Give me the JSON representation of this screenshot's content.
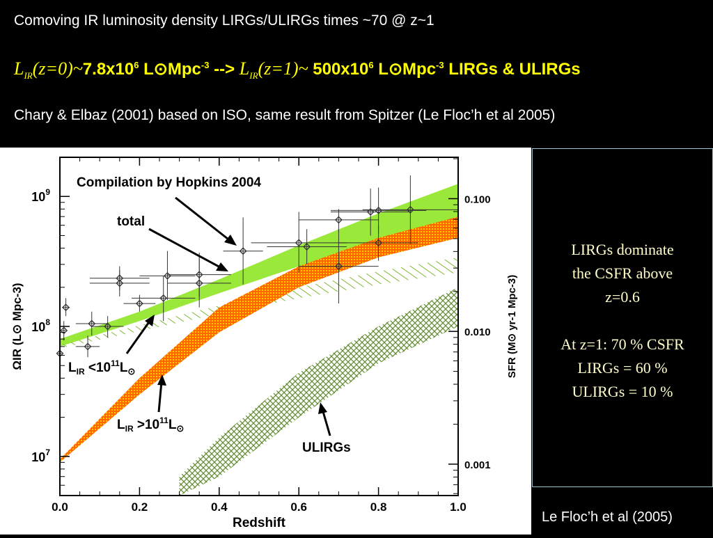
{
  "header": {
    "line1": "Comoving IR luminosity density LIRGs/ULIRGs times ~70 @ z~1",
    "line2": {
      "sym": "L",
      "sub": "IR",
      "z0": "(z=0)~",
      "val0": "7.8x10",
      "exp0": "6",
      "unit_l": "L",
      "sun": "⊙",
      "mpc": "Mpc",
      "mexp": "-3",
      "arrow": " --> ",
      "z1": "(z=1)~",
      "val1": " 500x10",
      "exp1": "6",
      "tail": " LIRGs & ULIRGs"
    },
    "line3": "Chary & Elbaz (2001) based on ISO, same result from Spitzer (Le Floc’h et al 2005)"
  },
  "side_panel": {
    "lines_a": [
      "LIRGs dominate",
      "the CSFR above",
      "z=0.6"
    ],
    "lines_b": [
      "At z=1: 70 % CSFR",
      "LIRGs = 60 %",
      "ULIRGs = 10 %"
    ]
  },
  "footer": "Le Floc’h et al (2005)",
  "colors": {
    "total_band": "#99e83a",
    "lirg_low_hatch": "#7fb833",
    "lirg_high_band": "#ff6600",
    "lirg_high_accent": "#ffcc00",
    "ulirg_hatch": "#5e8a2a",
    "points": "#333333",
    "side_text": "#ffffcc",
    "line2_text": "#ffff00"
  },
  "chart_data": {
    "type": "area",
    "xlabel": "Redshift",
    "ylabel": "ΩIR (L⊙ Mpc-3)",
    "ylabel_right": "SFR (M⊙ yr-1 Mpc-3)",
    "xlim": [
      0,
      1
    ],
    "ylim": [
      5000000.0,
      2000000000.0
    ],
    "yscale": "log",
    "x_ticks": [
      "0.0",
      "0.2",
      "0.4",
      "0.6",
      "0.8",
      "1.0"
    ],
    "y_ticks": [
      {
        "value": 10000000,
        "label": "10",
        "exp": "7"
      },
      {
        "value": 100000000,
        "label": "10",
        "exp": "8"
      },
      {
        "value": 1000000000,
        "label": "10",
        "exp": "9"
      }
    ],
    "right_ticks": [
      {
        "value": 0.001,
        "label": "0.001"
      },
      {
        "value": 0.01,
        "label": "0.010"
      },
      {
        "value": 0.1,
        "label": "0.100"
      }
    ],
    "right_lim": [
      0.00058,
      0.205
    ],
    "annotations": {
      "compilation": "Compilation by Hopkins 2004",
      "total": "total",
      "lirg_low": {
        "pre": "L",
        "sub": "IR",
        "mid": " <10",
        "sup": "11",
        "post": "L",
        "sun": "⊙"
      },
      "lirg_high": {
        "pre": "L",
        "sub": "IR",
        "mid": " >10",
        "sup": "11",
        "post": "L",
        "sun": "⊙"
      },
      "ulirgs": "ULIRGs"
    },
    "series": [
      {
        "name": "total",
        "x": [
          0.0,
          0.2,
          0.4,
          0.6,
          0.8,
          1.0
        ],
        "lower": [
          70000000,
          110000000,
          180000000,
          290000000,
          460000000,
          700000000
        ],
        "upper": [
          80000000,
          130000000,
          230000000,
          420000000,
          740000000,
          1250000000
        ]
      },
      {
        "name": "LIR<10^11",
        "x": [
          0.0,
          0.2,
          0.4,
          0.6,
          0.8,
          1.0
        ],
        "lower": [
          68000000,
          92000000,
          125000000,
          165000000,
          210000000,
          260000000
        ],
        "upper": [
          72000000,
          102000000,
          145000000,
          200000000,
          265000000,
          340000000
        ]
      },
      {
        "name": "LIR>10^11",
        "x": [
          0.0,
          0.2,
          0.4,
          0.6,
          0.8,
          1.0
        ],
        "lower": [
          9000000,
          30000000,
          90000000,
          200000000,
          340000000,
          480000000
        ],
        "upper": [
          9500000,
          40000000,
          140000000,
          290000000,
          480000000,
          700000000
        ]
      },
      {
        "name": "ULIRGs",
        "x": [
          0.3,
          0.4,
          0.6,
          0.8,
          1.0
        ],
        "lower": [
          5000000,
          7000000,
          20000000,
          52000000,
          100000000
        ],
        "upper": [
          7000000,
          14000000,
          44000000,
          100000000,
          200000000
        ]
      }
    ],
    "points": [
      {
        "x": 0.0,
        "y": 62000000,
        "xerr": 0.005,
        "yerr": [
          52000000,
          74000000
        ]
      },
      {
        "x": 0.01,
        "y": 93000000,
        "xerr": 0.005,
        "yerr": [
          78000000,
          110000000
        ]
      },
      {
        "x": 0.015,
        "y": 140000000,
        "xerr": 0.01,
        "yerr": [
          120000000,
          165000000
        ]
      },
      {
        "x": 0.07,
        "y": 70000000,
        "xerr": 0.03,
        "yerr": [
          58000000,
          85000000
        ]
      },
      {
        "x": 0.08,
        "y": 105000000,
        "xerr": 0.04,
        "yerr": [
          85000000,
          130000000
        ]
      },
      {
        "x": 0.12,
        "y": 100000000,
        "xerr": 0.04,
        "yerr": [
          82000000,
          120000000
        ]
      },
      {
        "x": 0.15,
        "y": 215000000,
        "xerr": 0.075,
        "yerr": [
          170000000,
          270000000
        ]
      },
      {
        "x": 0.15,
        "y": 235000000,
        "xerr": 0.075,
        "yerr": [
          190000000,
          290000000
        ]
      },
      {
        "x": 0.2,
        "y": 150000000,
        "xerr": 0.04,
        "yerr": [
          130000000,
          175000000
        ]
      },
      {
        "x": 0.26,
        "y": 165000000,
        "xerr": 0.08,
        "yerr": [
          110000000,
          245000000
        ]
      },
      {
        "x": 0.27,
        "y": 245000000,
        "xerr": 0.07,
        "yerr": [
          160000000,
          380000000
        ]
      },
      {
        "x": 0.35,
        "y": 215000000,
        "xerr": 0.08,
        "yerr": [
          140000000,
          340000000
        ]
      },
      {
        "x": 0.35,
        "y": 250000000,
        "xerr": 0.08,
        "yerr": [
          170000000,
          370000000
        ]
      },
      {
        "x": 0.46,
        "y": 380000000,
        "xerr": 0.05,
        "yerr": [
          210000000,
          690000000
        ]
      },
      {
        "x": 0.6,
        "y": 440000000,
        "xerr": 0.12,
        "yerr": [
          260000000,
          760000000
        ]
      },
      {
        "x": 0.62,
        "y": 410000000,
        "xerr": 0.1,
        "yerr": [
          300000000,
          560000000
        ]
      },
      {
        "x": 0.7,
        "y": 290000000,
        "xerr": 0.1,
        "yerr": [
          150000000,
          560000000
        ]
      },
      {
        "x": 0.7,
        "y": 660000000,
        "xerr": 0.1,
        "yerr": [
          540000000,
          800000000
        ]
      },
      {
        "x": 0.78,
        "y": 760000000,
        "xerr": 0.1,
        "yerr": [
          500000000,
          1150000000
        ]
      },
      {
        "x": 0.8,
        "y": 440000000,
        "xerr": 0.1,
        "yerr": [
          320000000,
          600000000
        ]
      },
      {
        "x": 0.8,
        "y": 780000000,
        "xerr": 0.12,
        "yerr": [
          520000000,
          1170000000
        ]
      },
      {
        "x": 0.88,
        "y": 790000000,
        "xerr": 0.12,
        "yerr": [
          430000000,
          1450000000
        ]
      }
    ]
  }
}
